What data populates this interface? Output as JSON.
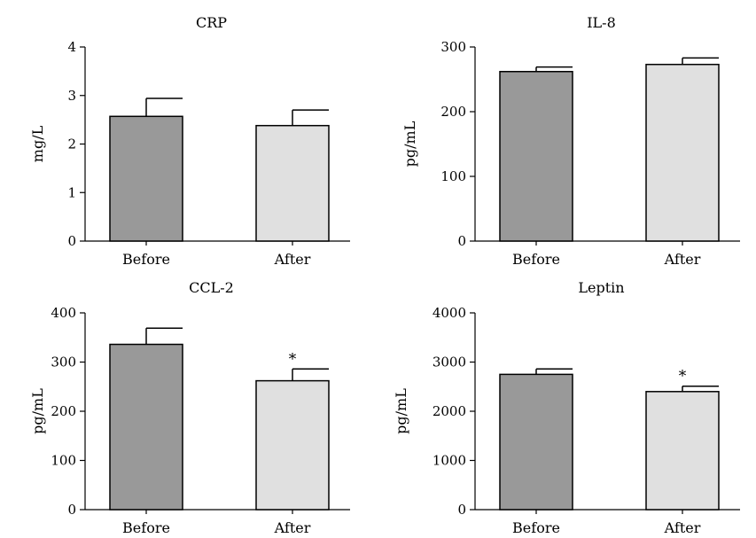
{
  "colors": {
    "before": "#999999",
    "after": "#e0e0e0",
    "stroke": "#000000"
  },
  "chart_data": [
    {
      "type": "bar",
      "title": "CRP",
      "ylabel": "mg/L",
      "categories": [
        "Before",
        "After"
      ],
      "values": [
        2.57,
        2.38
      ],
      "errors": [
        0.37,
        0.32
      ],
      "ylim": [
        0,
        4
      ],
      "yticks": [
        "0",
        "1",
        "2",
        "3",
        "4"
      ],
      "annotations": [
        "",
        ""
      ]
    },
    {
      "type": "bar",
      "title": "IL-8",
      "ylabel": "pg/mL",
      "categories": [
        "Before",
        "After"
      ],
      "values": [
        262,
        273
      ],
      "errors": [
        7,
        10
      ],
      "ylim": [
        0,
        300
      ],
      "yticks": [
        "0",
        "100",
        "200",
        "300"
      ],
      "annotations": [
        "",
        ""
      ]
    },
    {
      "type": "bar",
      "title": "CCL-2",
      "ylabel": "pg/mL",
      "categories": [
        "Before",
        "After"
      ],
      "values": [
        336,
        262
      ],
      "errors": [
        33,
        24
      ],
      "ylim": [
        0,
        400
      ],
      "yticks": [
        "0",
        "100",
        "200",
        "300",
        "400"
      ],
      "annotations": [
        "",
        "*"
      ]
    },
    {
      "type": "bar",
      "title": "Leptin",
      "ylabel": "pg/mL",
      "categories": [
        "Before",
        "After"
      ],
      "values": [
        2750,
        2400
      ],
      "errors": [
        110,
        110
      ],
      "ylim": [
        0,
        4000
      ],
      "yticks": [
        "0",
        "1000",
        "2000",
        "3000",
        "4000"
      ],
      "annotations": [
        "",
        "*"
      ]
    }
  ]
}
